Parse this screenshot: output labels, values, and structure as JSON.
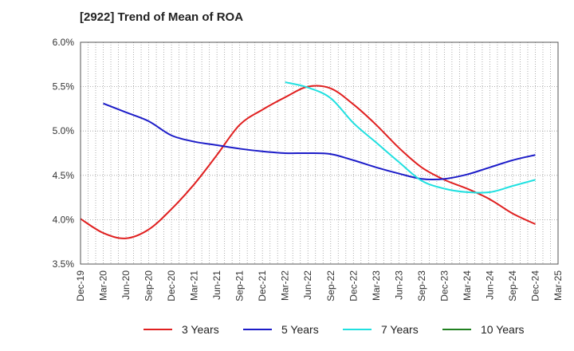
{
  "title": "[2922]  Trend of Mean of ROA",
  "chart_data": {
    "type": "line",
    "title": "[2922]  Trend of Mean of ROA",
    "xlabel": "",
    "ylabel": "",
    "x": [
      "Dec-19",
      "Mar-20",
      "Jun-20",
      "Sep-20",
      "Dec-20",
      "Mar-21",
      "Jun-21",
      "Sep-21",
      "Dec-21",
      "Mar-22",
      "Jun-22",
      "Sep-22",
      "Dec-22",
      "Mar-23",
      "Jun-23",
      "Sep-23",
      "Dec-23",
      "Mar-24",
      "Jun-24",
      "Sep-24",
      "Dec-24",
      "Mar-25"
    ],
    "yticks": [
      "3.5%",
      "4.0%",
      "4.5%",
      "5.0%",
      "5.5%",
      "6.0%"
    ],
    "ylim": [
      3.5,
      6.0
    ],
    "grid": true,
    "legend_position": "bottom",
    "series": [
      {
        "name": "3 Years",
        "color": "#e02020",
        "values": [
          4.01,
          3.85,
          3.79,
          3.89,
          4.12,
          4.4,
          4.73,
          5.07,
          5.24,
          5.38,
          5.5,
          5.48,
          5.3,
          5.07,
          4.81,
          4.59,
          4.45,
          4.35,
          4.23,
          4.07,
          3.95,
          null
        ]
      },
      {
        "name": "5 Years",
        "color": "#1c1cc8",
        "values": [
          null,
          5.31,
          5.21,
          5.11,
          4.95,
          4.88,
          4.84,
          4.8,
          4.77,
          4.75,
          4.75,
          4.74,
          4.67,
          4.59,
          4.52,
          4.46,
          4.46,
          4.51,
          4.59,
          4.67,
          4.73,
          null
        ]
      },
      {
        "name": "7 Years",
        "color": "#20e0e0",
        "values": [
          null,
          null,
          null,
          null,
          null,
          null,
          null,
          null,
          null,
          5.55,
          5.49,
          5.37,
          5.09,
          4.87,
          4.65,
          4.44,
          4.35,
          4.31,
          4.31,
          4.38,
          4.45,
          null
        ]
      },
      {
        "name": "10 Years",
        "color": "#208020",
        "values": [
          null,
          null,
          null,
          null,
          null,
          null,
          null,
          null,
          null,
          null,
          null,
          null,
          null,
          null,
          null,
          null,
          null,
          null,
          null,
          null,
          null,
          null
        ]
      }
    ]
  }
}
